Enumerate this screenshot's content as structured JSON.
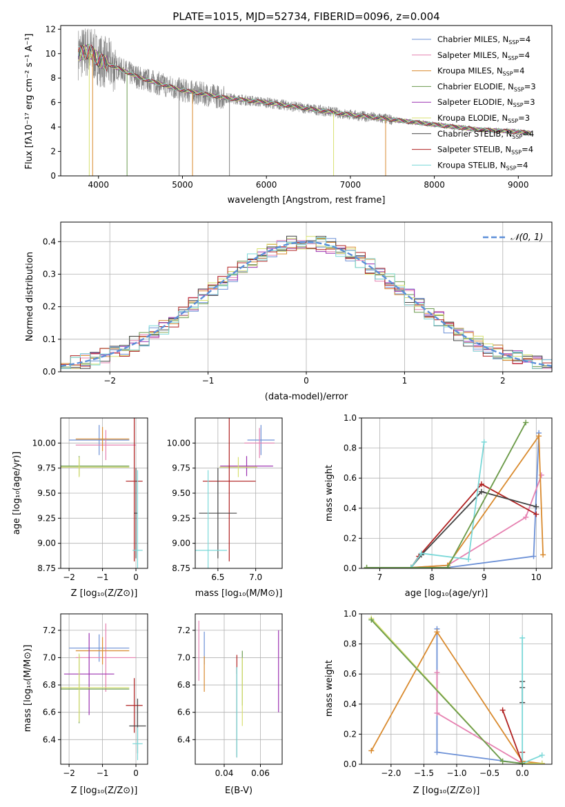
{
  "chart_data": [
    {
      "type": "line",
      "title": "PLATE=1015, MJD=52734, FIBERID=0096, z=0.004",
      "xlabel": "wavelength [Angstrom, rest frame]",
      "ylabel": "Flux [fλ10⁻¹⁷ erg cm⁻² s⁻¹ A⁻¹]",
      "xlim": [
        3550,
        9400
      ],
      "ylim": [
        0,
        12.3
      ],
      "xticks": [
        "4000",
        "5000",
        "6000",
        "7000",
        "8000",
        "9000"
      ],
      "yticks": [
        "0",
        "2",
        "4",
        "6",
        "8",
        "10",
        "12"
      ],
      "legend_position": "top-right",
      "series": [
        {
          "name": "Chabrier MILES, N",
          "sub": "SSP",
          "suffix": "=4",
          "color": "#6a8fd6"
        },
        {
          "name": "Salpeter MILES, N",
          "sub": "SSP",
          "suffix": "=4",
          "color": "#e680b0"
        },
        {
          "name": "Kroupa MILES, N",
          "sub": "SSP",
          "suffix": "=4",
          "color": "#d98a2e"
        },
        {
          "name": "Chabrier ELODIE, N",
          "sub": "SSP",
          "suffix": "=3",
          "color": "#6a9a4e"
        },
        {
          "name": "Salpeter ELODIE, N",
          "sub": "SSP",
          "suffix": "=3",
          "color": "#9b30b0"
        },
        {
          "name": "Kroupa ELODIE, N",
          "sub": "SSP",
          "suffix": "=3",
          "color": "#d8e070"
        },
        {
          "name": "Chabrier STELIB, N",
          "sub": "SSP",
          "suffix": "=4",
          "color": "#444444"
        },
        {
          "name": "Salpeter STELIB, N",
          "sub": "SSP",
          "suffix": "=4",
          "color": "#b02020"
        },
        {
          "name": "Kroupa STELIB, N",
          "sub": "SSP",
          "suffix": "=4",
          "color": "#7ad8d8"
        }
      ],
      "data_color": "#808080",
      "continuum": {
        "x": [
          3750,
          3900,
          4000,
          4200,
          4500,
          5000,
          5500,
          6000,
          6500,
          7000,
          7500,
          8000,
          8500,
          9000,
          9150
        ],
        "y": [
          10.0,
          10.2,
          9.5,
          8.9,
          8.0,
          7.0,
          6.4,
          6.0,
          5.5,
          5.0,
          4.6,
          4.2,
          3.8,
          3.6,
          3.5
        ]
      }
    },
    {
      "type": "line",
      "xlabel": "(data-model)/error",
      "ylabel": "Normed distribution",
      "xlim": [
        -2.5,
        2.5
      ],
      "ylim": [
        0,
        0.46
      ],
      "xticks": [
        "−2",
        "−1",
        "0",
        "1",
        "2"
      ],
      "yticks": [
        "0.0",
        "0.1",
        "0.2",
        "0.3",
        "0.4"
      ],
      "legend": "𝒩(0, 1)",
      "legend_position": "top-right",
      "bin_width": 0.1
    },
    {
      "type": "scatter",
      "xlabel": "Z [log₁₀(Z/Z⊙)]",
      "ylabel": "age  [log₁₀(age/yr)]",
      "xlim": [
        -2.25,
        0.35
      ],
      "ylim": [
        8.75,
        10.25
      ],
      "xticks": [
        "−2",
        "−1",
        "0"
      ],
      "yticks": [
        "8.75",
        "9.00",
        "9.25",
        "9.50",
        "9.75",
        "10.00"
      ],
      "points": [
        {
          "c": "#6a8fd6",
          "x": -1.1,
          "y": 10.03,
          "xe": 0.9,
          "ye": 0.15
        },
        {
          "c": "#e680b0",
          "x": -0.9,
          "y": 9.98,
          "xe": 0.9,
          "ye": 0.15
        },
        {
          "c": "#d98a2e",
          "x": -1.0,
          "y": 10.04,
          "xe": 0.8,
          "ye": 0.12
        },
        {
          "c": "#6a9a4e",
          "x": -1.7,
          "y": 9.77,
          "xe": 1.5,
          "ye": 0.1
        },
        {
          "c": "#d8e070",
          "x": -1.7,
          "y": 9.76,
          "xe": 1.5,
          "ye": 0.1
        },
        {
          "c": "#b02020",
          "x": -0.05,
          "y": 9.62,
          "xe": 0.25,
          "ye": 0.8
        },
        {
          "c": "#444444",
          "x": 0.0,
          "y": 9.3,
          "xe": 0.05,
          "ye": 0.45
        },
        {
          "c": "#7ad8d8",
          "x": 0.05,
          "y": 8.93,
          "xe": 0.15,
          "ye": 0.8
        }
      ]
    },
    {
      "type": "scatter",
      "xlabel": "mass [log₁₀(M/M⊙)]",
      "xlim": [
        6.2,
        7.35
      ],
      "ylim": [
        8.75,
        10.25
      ],
      "xticks": [
        "6.5",
        "7.0"
      ],
      "yticks": [
        "8.75",
        "9.00",
        "9.25",
        "9.50",
        "9.75",
        "10.00"
      ],
      "points": [
        {
          "c": "#6a8fd6",
          "x": 7.07,
          "y": 10.03,
          "xe": 0.18,
          "ye": 0.15
        },
        {
          "c": "#e680b0",
          "x": 7.05,
          "y": 10.0,
          "xe": 0.2,
          "ye": 0.15
        },
        {
          "c": "#9b30b0",
          "x": 6.88,
          "y": 9.77,
          "xe": 0.35,
          "ye": 0.1
        },
        {
          "c": "#d8e070",
          "x": 6.77,
          "y": 9.76,
          "xe": 0.25,
          "ye": 0.1
        },
        {
          "c": "#b02020",
          "x": 6.65,
          "y": 9.62,
          "xe": 0.35,
          "ye": 0.8
        },
        {
          "c": "#444444",
          "x": 6.5,
          "y": 9.3,
          "xe": 0.25,
          "ye": 0.45
        },
        {
          "c": "#7ad8d8",
          "x": 6.37,
          "y": 8.93,
          "xe": 0.25,
          "ye": 0.8
        }
      ]
    },
    {
      "type": "line",
      "xlabel": "age  [log₁₀(age/yr)]",
      "ylabel": "mass weight",
      "xlim": [
        6.65,
        10.3
      ],
      "ylim": [
        0,
        1
      ],
      "xticks": [
        "7",
        "8",
        "9",
        "10"
      ],
      "yticks": [
        "0.0",
        "0.2",
        "0.4",
        "0.6",
        "0.8",
        "1.0"
      ],
      "series": [
        {
          "c": "#6a8fd6",
          "x": [
            7.6,
            8.3,
            9.95,
            10.05
          ],
          "y": [
            0.005,
            0.005,
            0.08,
            0.9
          ]
        },
        {
          "c": "#e680b0",
          "x": [
            7.6,
            8.3,
            9.8,
            10.1
          ],
          "y": [
            0.005,
            0.02,
            0.34,
            0.62
          ]
        },
        {
          "c": "#d98a2e",
          "x": [
            7.6,
            8.3,
            10.05,
            10.13
          ],
          "y": [
            0.005,
            0.02,
            0.88,
            0.09
          ]
        },
        {
          "c": "#b02020",
          "x": [
            7.6,
            7.75,
            8.95,
            10.0
          ],
          "y": [
            0.005,
            0.08,
            0.56,
            0.36
          ]
        },
        {
          "c": "#444444",
          "x": [
            7.6,
            7.8,
            8.95,
            10.0
          ],
          "y": [
            0.005,
            0.09,
            0.51,
            0.41
          ]
        },
        {
          "c": "#7ad8d8",
          "x": [
            7.6,
            7.8,
            8.7,
            9.0
          ],
          "y": [
            0.005,
            0.1,
            0.06,
            0.84
          ]
        },
        {
          "c": "#d8e070",
          "x": [
            6.75,
            8.3,
            9.8
          ],
          "y": [
            0.005,
            0.005,
            0.97
          ]
        },
        {
          "c": "#6a9a4e",
          "x": [
            6.75,
            8.3,
            9.8
          ],
          "y": [
            0.005,
            0.005,
            0.97
          ]
        }
      ]
    },
    {
      "type": "scatter",
      "xlabel": "Z [log₁₀(Z/Z⊙)]",
      "ylabel": "mass [log₁₀(M/M⊙)]",
      "xlim": [
        -2.25,
        0.35
      ],
      "ylim": [
        6.22,
        7.32
      ],
      "xticks": [
        "−2",
        "−1",
        "0"
      ],
      "yticks": [
        "6.4",
        "6.6",
        "6.8",
        "7.0",
        "7.2"
      ],
      "points": [
        {
          "c": "#6a8fd6",
          "x": -1.1,
          "y": 7.07,
          "xe": 0.9,
          "ye": 0.1
        },
        {
          "c": "#e680b0",
          "x": -0.9,
          "y": 7.0,
          "xe": 0.9,
          "ye": 0.25
        },
        {
          "c": "#d98a2e",
          "x": -1.0,
          "y": 7.05,
          "xe": 0.8,
          "ye": 0.1
        },
        {
          "c": "#9b30b0",
          "x": -1.4,
          "y": 6.88,
          "xe": 0.75,
          "ye": 0.3
        },
        {
          "c": "#6a9a4e",
          "x": -1.7,
          "y": 6.77,
          "xe": 1.5,
          "ye": 0.25
        },
        {
          "c": "#d8e070",
          "x": -1.7,
          "y": 6.78,
          "xe": 1.5,
          "ye": 0.25
        },
        {
          "c": "#b02020",
          "x": -0.05,
          "y": 6.65,
          "xe": 0.25,
          "ye": 0.2
        },
        {
          "c": "#444444",
          "x": 0.05,
          "y": 6.5,
          "xe": 0.25,
          "ye": 0.2
        },
        {
          "c": "#7ad8d8",
          "x": 0.05,
          "y": 6.37,
          "xe": 0.15,
          "ye": 0.12
        }
      ]
    },
    {
      "type": "scatter",
      "xlabel": "E(B-V)",
      "xlim": [
        0.024,
        0.072
      ],
      "ylim": [
        6.22,
        7.32
      ],
      "xticks": [
        "0.04",
        "0.06"
      ],
      "yticks": [
        "6.4",
        "6.6",
        "6.8",
        "7.0",
        "7.2"
      ],
      "points": [
        {
          "c": "#e680b0",
          "x": 0.026,
          "y": 7.05,
          "ye": 0.22
        },
        {
          "c": "#6a8fd6",
          "x": 0.029,
          "y": 7.07,
          "ye": 0.12
        },
        {
          "c": "#d98a2e",
          "x": 0.029,
          "y": 6.88,
          "ye": 0.13
        },
        {
          "c": "#b02020",
          "x": 0.047,
          "y": 6.95,
          "ye": 0.07
        },
        {
          "c": "#444444",
          "x": 0.047,
          "y": 6.6,
          "ye": 0.33
        },
        {
          "c": "#7ad8d8",
          "x": 0.047,
          "y": 6.6,
          "ye": 0.33
        },
        {
          "c": "#6a9a4e",
          "x": 0.05,
          "y": 6.85,
          "ye": 0.2
        },
        {
          "c": "#d8e070",
          "x": 0.05,
          "y": 6.75,
          "ye": 0.25
        },
        {
          "c": "#9b30b0",
          "x": 0.07,
          "y": 6.9,
          "ye": 0.3
        }
      ]
    },
    {
      "type": "line",
      "xlabel": "Z [log₁₀(Z/Z⊙)]",
      "ylabel": "mass weight",
      "xlim": [
        -2.45,
        0.45
      ],
      "ylim": [
        0,
        1
      ],
      "xticks": [
        "−2.0",
        "−1.5",
        "−1.0",
        "−0.5",
        "0.0"
      ],
      "yticks": [
        "0.0",
        "0.2",
        "0.4",
        "0.6",
        "0.8",
        "1.0"
      ],
      "series": [
        {
          "c": "#6a8fd6",
          "x": [
            -1.3,
            -1.3,
            0.0,
            0.3
          ],
          "y": [
            0.9,
            0.08,
            0.005,
            0.005
          ]
        },
        {
          "c": "#e680b0",
          "x": [
            -1.3,
            -1.3,
            0.0,
            0.3
          ],
          "y": [
            0.61,
            0.34,
            0.005,
            0.005
          ]
        },
        {
          "c": "#d98a2e",
          "x": [
            -2.3,
            -1.3,
            0.0,
            0.3
          ],
          "y": [
            0.09,
            0.88,
            0.02,
            0.005
          ]
        },
        {
          "c": "#b02020",
          "x": [
            -0.3,
            0.0,
            0.0
          ],
          "y": [
            0.36,
            0.005,
            0.08
          ]
        },
        {
          "c": "#444444",
          "x": [
            0.0,
            0.0,
            0.0
          ],
          "y": [
            0.55,
            0.41,
            0.51
          ]
        },
        {
          "c": "#7ad8d8",
          "x": [
            0.0,
            0.0,
            0.3
          ],
          "y": [
            0.84,
            0.005,
            0.06
          ]
        },
        {
          "c": "#d8e070",
          "x": [
            -2.3,
            -0.3,
            0.0,
            0.3
          ],
          "y": [
            0.97,
            0.02,
            0.005,
            0.005
          ]
        },
        {
          "c": "#6a9a4e",
          "x": [
            -2.3,
            -0.3,
            0.0
          ],
          "y": [
            0.96,
            0.02,
            0.005
          ]
        }
      ]
    }
  ]
}
